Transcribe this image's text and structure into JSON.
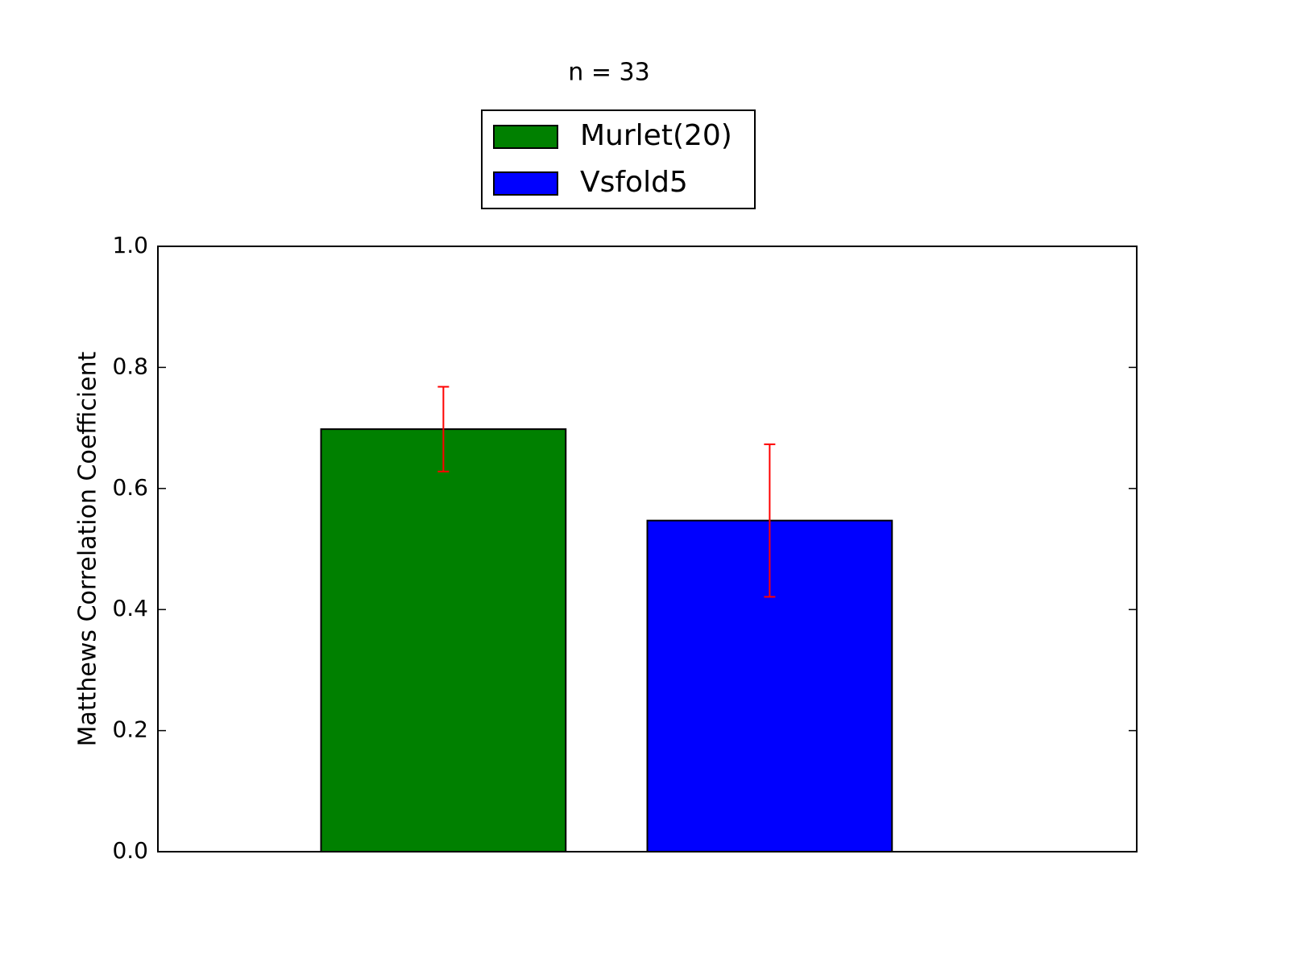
{
  "chart_data": {
    "type": "bar",
    "title": "n = 33",
    "ylabel": "Matthews Correlation Coefficient",
    "series": [
      {
        "name": "Murlet(20)",
        "color": "#008000",
        "values": [
          0.698
        ],
        "errors": [
          0.07
        ]
      },
      {
        "name": "Vsfold5",
        "color": "#0000ff",
        "values": [
          0.547
        ],
        "errors": [
          0.126
        ]
      }
    ],
    "error_color": "#ff0000",
    "ylim": [
      0,
      1
    ],
    "yticks": [
      {
        "value": 0,
        "label": "0.0"
      },
      0.2,
      0.4,
      0.6,
      0.8,
      {
        "value": 1,
        "label": "1.0"
      }
    ],
    "legend": "upper center"
  }
}
